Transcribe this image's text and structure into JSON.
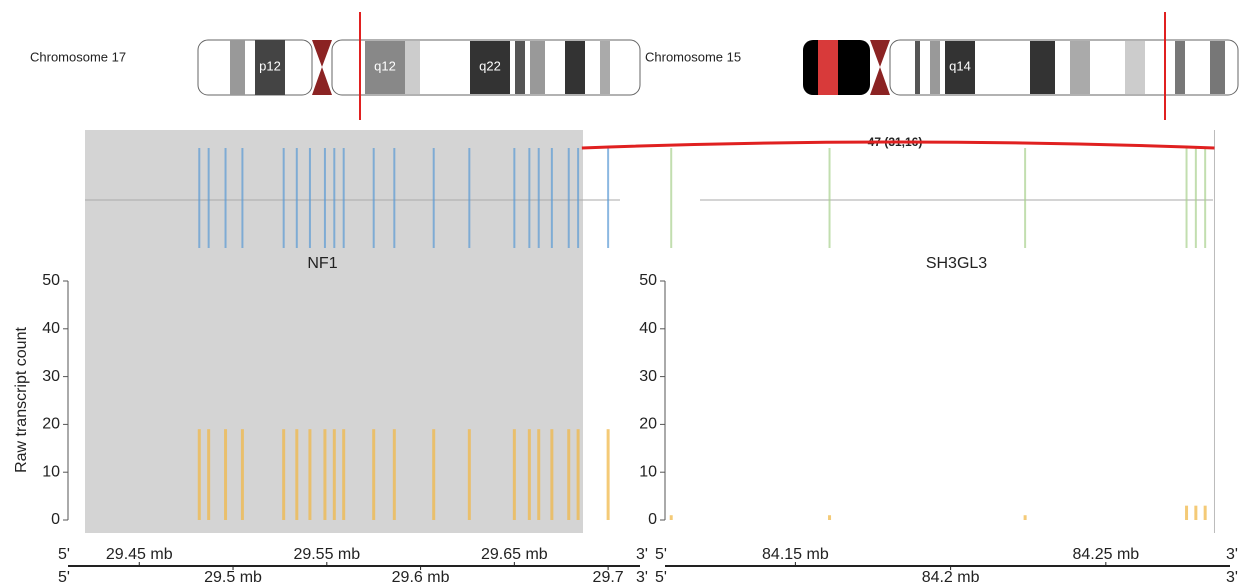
{
  "ideograms": [
    {
      "name": "Chromosome 17",
      "bands": [
        "p12",
        "q12",
        "q22"
      ]
    },
    {
      "name": "Chromosome 15",
      "bands": [
        "q14"
      ]
    }
  ],
  "fusion_label": "47 (31,16)",
  "strand_labels": [
    "5'",
    "3'"
  ],
  "chart_data": [
    {
      "type": "bar",
      "title": "NF1",
      "y_label": "Raw transcript count",
      "color": "#f0b84a",
      "exon_color": "#5b9bd5",
      "x": [
        29.482,
        29.487,
        29.496,
        29.505,
        29.527,
        29.534,
        29.541,
        29.549,
        29.554,
        29.559,
        29.575,
        29.586,
        29.607,
        29.626,
        29.65,
        29.658,
        29.663,
        29.67,
        29.679,
        29.684,
        29.7
      ],
      "values": [
        19,
        19,
        19,
        19,
        19,
        19,
        19,
        19,
        19,
        19,
        19,
        19,
        19,
        19,
        19,
        19,
        19,
        19,
        19,
        19,
        19
      ],
      "breakpoint": 29.686,
      "xlim": [
        29.412,
        29.717
      ],
      "ylim": [
        0,
        50
      ],
      "yticks": [
        0,
        10,
        20,
        30,
        40,
        50
      ],
      "xticks": [
        {
          "value": 29.45,
          "label": "29.45 mb"
        },
        {
          "value": 29.5,
          "label": "29.5 mb"
        },
        {
          "value": 29.55,
          "label": "29.55 mb"
        },
        {
          "value": 29.6,
          "label": "29.6 mb"
        },
        {
          "value": 29.65,
          "label": "29.65 mb"
        },
        {
          "value": 29.7,
          "label": "29.7"
        }
      ]
    },
    {
      "type": "bar",
      "title": "SH3GL3",
      "color": "#f0b84a",
      "exon_color": "#a9d18e",
      "x": [
        84.11,
        84.161,
        84.224,
        84.276,
        84.279,
        84.282
      ],
      "values": [
        1,
        1,
        1,
        3,
        3,
        3
      ],
      "breakpoint": 84.285,
      "xlim": [
        84.108,
        84.29
      ],
      "ylim": [
        0,
        50
      ],
      "yticks": [
        0,
        10,
        20,
        30,
        40,
        50
      ],
      "xticks": [
        {
          "value": 84.15,
          "label": "84.15 mb"
        },
        {
          "value": 84.2,
          "label": "84.2 mb"
        },
        {
          "value": 84.25,
          "label": "84.25 mb"
        }
      ]
    }
  ]
}
